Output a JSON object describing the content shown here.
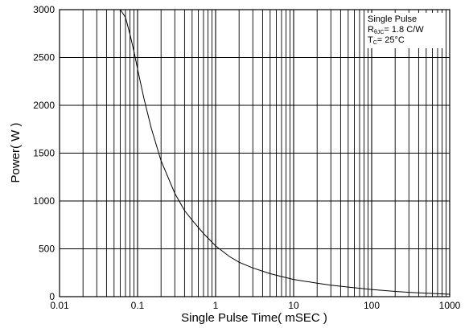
{
  "chart_data": {
    "type": "line",
    "title": "",
    "xlabel": "Single Pulse Time( mSEC )",
    "ylabel": "Power( W )",
    "x_scale": "log",
    "xlim": [
      0.01,
      1000
    ],
    "ylim": [
      0,
      3000
    ],
    "grid": true,
    "x_ticks": [
      "0.01",
      "0.1",
      "1",
      "10",
      "100",
      "1000"
    ],
    "y_ticks": [
      "0",
      "500",
      "1000",
      "1500",
      "2000",
      "2500",
      "3000"
    ],
    "annotations": {
      "line1": "Single Pulse",
      "line2_main": "R",
      "line2_sub": "θJC",
      "line2_rest": "= 1.8 C/W",
      "line3_main": "T",
      "line3_sub": "C",
      "line3_rest": "= 25°C"
    },
    "series": [
      {
        "x": [
          0.06,
          0.07,
          0.08,
          0.09,
          0.1,
          0.12,
          0.15,
          0.2,
          0.3,
          0.4,
          0.5,
          0.7,
          1,
          1.5,
          2,
          3,
          5,
          7,
          10,
          20,
          30,
          50,
          100,
          200,
          300,
          500,
          1000
        ],
        "y": [
          3080,
          2920,
          2740,
          2560,
          2380,
          2080,
          1760,
          1420,
          1080,
          900,
          800,
          660,
          530,
          420,
          360,
          300,
          240,
          210,
          180,
          140,
          120,
          100,
          75,
          55,
          45,
          35,
          25
        ]
      }
    ]
  }
}
